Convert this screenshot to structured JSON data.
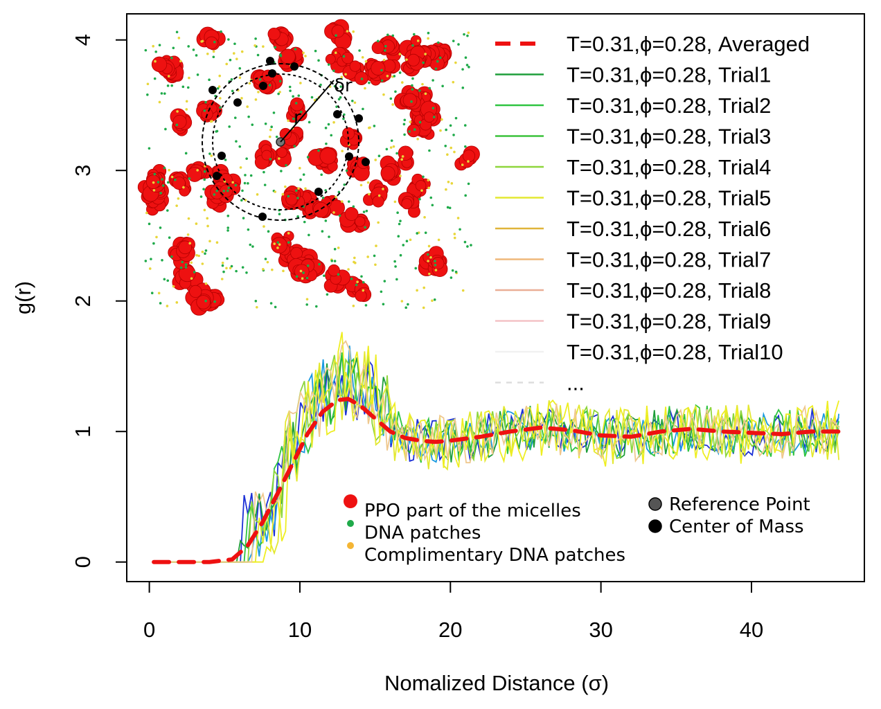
{
  "chart_data": {
    "type": "line",
    "xlabel": "Nomalized Distance (σ)",
    "ylabel": "g(r)",
    "xlim": [
      -1.5,
      47.5
    ],
    "ylim": [
      -0.15,
      4.2
    ],
    "x_ticks": [
      0,
      10,
      20,
      30,
      40
    ],
    "y_ticks": [
      0,
      1,
      2,
      3,
      4
    ],
    "grid": false,
    "legend_position": "top-right",
    "series": [
      {
        "name": "T=0.31,ϕ=0.28, Averaged",
        "color": "#ee1111",
        "style": "dashed",
        "x": [
          0.3,
          2,
          4,
          5.5,
          6.5,
          7.5,
          8.5,
          9.5,
          10.5,
          11.5,
          12.5,
          13.2,
          14,
          15,
          16,
          17,
          18,
          19,
          20,
          22,
          24,
          26,
          28,
          30,
          32,
          34,
          36,
          38,
          40,
          42,
          44,
          46
        ],
        "y": [
          0,
          0,
          0,
          0.02,
          0.12,
          0.3,
          0.52,
          0.75,
          0.98,
          1.15,
          1.24,
          1.25,
          1.2,
          1.1,
          1.0,
          0.95,
          0.93,
          0.92,
          0.93,
          0.96,
          1.0,
          1.03,
          1.01,
          0.97,
          0.96,
          1.0,
          1.02,
          1.0,
          0.99,
          0.98,
          1.0,
          1.0
        ]
      },
      {
        "name": "T=0.31,ϕ=0.28, Trial1",
        "color": "#1e9e3a"
      },
      {
        "name": "T=0.31,ϕ=0.28, Trial2",
        "color": "#2ec441"
      },
      {
        "name": "T=0.31,ϕ=0.28, Trial3",
        "color": "#3ac23a"
      },
      {
        "name": "T=0.31,ϕ=0.28, Trial4",
        "color": "#8ed63c"
      },
      {
        "name": "T=0.31,ϕ=0.28, Trial5",
        "color": "#e3e830"
      },
      {
        "name": "T=0.31,ϕ=0.28, Trial6",
        "color": "#e0b43a"
      },
      {
        "name": "T=0.31,ϕ=0.28, Trial7",
        "color": "#efb87a"
      },
      {
        "name": "T=0.31,ϕ=0.28, Trial8",
        "color": "#eaae96"
      },
      {
        "name": "T=0.31,ϕ=0.28, Trial9",
        "color": "#f4c2c6"
      },
      {
        "name": "T=0.31,ϕ=0.28, Trial10",
        "color": "#f1f1f1"
      },
      {
        "name": "...",
        "color": "#dddddd"
      }
    ],
    "noisy_traces": [
      {
        "color": "#1b2fd6",
        "onset": 6.2,
        "amp": 0.18,
        "seed": 3
      },
      {
        "color": "#1a9ae0",
        "onset": 6.6,
        "amp": 0.17,
        "seed": 7
      },
      {
        "color": "#1e9e3a",
        "onset": 6.0,
        "amp": 0.18,
        "seed": 11
      },
      {
        "color": "#2ec441",
        "onset": 6.4,
        "amp": 0.19,
        "seed": 19
      },
      {
        "color": "#8ed63c",
        "onset": 6.8,
        "amp": 0.2,
        "seed": 23
      },
      {
        "color": "#e3e830",
        "onset": 7.1,
        "amp": 0.22,
        "seed": 29
      },
      {
        "color": "#eeee22",
        "onset": 7.6,
        "amp": 0.24,
        "seed": 31
      },
      {
        "color": "#efc88e",
        "onset": 6.9,
        "amp": 0.2,
        "seed": 37
      }
    ]
  },
  "legend": {
    "items": [
      "T=0.31,ϕ=0.28, Averaged",
      "T=0.31,ϕ=0.28, Trial1",
      "T=0.31,ϕ=0.28, Trial2",
      "T=0.31,ϕ=0.28, Trial3",
      "T=0.31,ϕ=0.28, Trial4",
      "T=0.31,ϕ=0.28, Trial5",
      "T=0.31,ϕ=0.28, Trial6",
      "T=0.31,ϕ=0.28, Trial7",
      "T=0.31,ϕ=0.28, Trial8",
      "T=0.31,ϕ=0.28, Trial9",
      "T=0.31,ϕ=0.28, Trial10",
      "..."
    ]
  },
  "inset": {
    "r_label": "r",
    "dr_label": "δr",
    "legend_left": [
      {
        "label": "PPO part of the micelles",
        "color": "#ee1111"
      },
      {
        "label": "DNA patches",
        "color": "#1faa4a"
      },
      {
        "label": "Complimentary DNA patches",
        "color": "#f4b534"
      }
    ],
    "legend_right": [
      {
        "label": "Reference Point",
        "color": "#555555"
      },
      {
        "label": "Center of Mass",
        "color": "#000000"
      }
    ]
  }
}
